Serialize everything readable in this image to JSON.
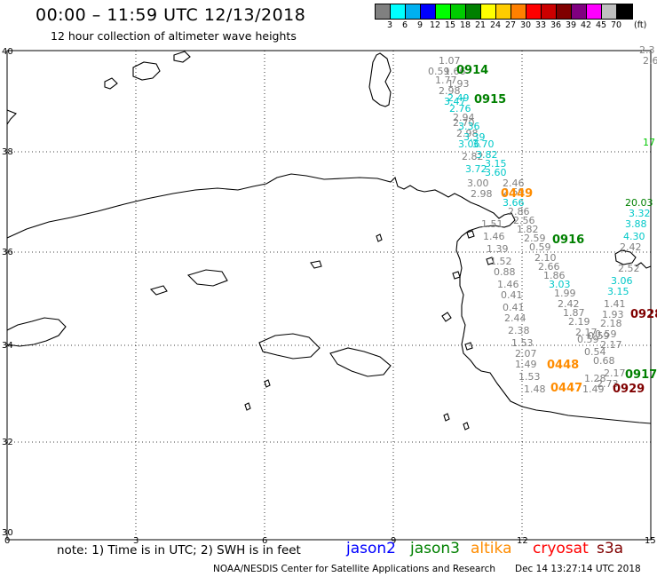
{
  "header": {
    "title": "00:00 – 11:59 UTC 12/13/2018",
    "subtitle": "12 hour collection of altimeter wave heights"
  },
  "scale": {
    "colors": [
      "#808080",
      "#00ffff",
      "#00b0f0",
      "#0000ff",
      "#00ff00",
      "#00cc00",
      "#008000",
      "#ffff00",
      "#ffcc00",
      "#ff8000",
      "#ff0000",
      "#cc0000",
      "#800000",
      "#800080",
      "#ff00ff",
      "#c0c0c0",
      "#000000"
    ],
    "labels": [
      "3",
      "6",
      "9",
      "12",
      "15",
      "18",
      "21",
      "24",
      "27",
      "30",
      "33",
      "36",
      "39",
      "42",
      "45",
      "70"
    ],
    "unit": "(ft)"
  },
  "axes": {
    "lat_labels": [
      "40",
      "38",
      "36",
      "34",
      "32",
      "30"
    ],
    "lon_labels": [
      "0",
      "3",
      "6",
      "9",
      "12",
      "15"
    ]
  },
  "passes": [
    {
      "label": "0914",
      "color": "#008000"
    },
    {
      "label": "0915",
      "color": "#008000"
    },
    {
      "label": "0449",
      "color": "#ff8c00"
    },
    {
      "label": "0916",
      "color": "#008000"
    },
    {
      "label": "0928",
      "color": "#800000"
    },
    {
      "label": "0448",
      "color": "#ff8c00"
    },
    {
      "label": "0917",
      "color": "#008000"
    },
    {
      "label": "0447",
      "color": "#ff8c00"
    },
    {
      "label": "0929",
      "color": "#800000"
    }
  ],
  "wave_values": [
    {
      "v": "1.07",
      "c": "#808080"
    },
    {
      "v": "0.59",
      "c": "#808080"
    },
    {
      "v": "1.66",
      "c": "#808080"
    },
    {
      "v": "1.77",
      "c": "#808080"
    },
    {
      "v": "1.93",
      "c": "#808080"
    },
    {
      "v": "2.98",
      "c": "#808080"
    },
    {
      "v": "2.49",
      "c": "#00c8c8"
    },
    {
      "v": "3.47",
      "c": "#00c8c8"
    },
    {
      "v": "2.76",
      "c": "#00c8c8"
    },
    {
      "v": "2.94",
      "c": "#808080"
    },
    {
      "v": "2.70",
      "c": "#808080"
    },
    {
      "v": "3.36",
      "c": "#00c8c8"
    },
    {
      "v": "2.98",
      "c": "#808080"
    },
    {
      "v": "3.39",
      "c": "#00c8c8"
    },
    {
      "v": "3.06",
      "c": "#00c8c8"
    },
    {
      "v": "3.70",
      "c": "#00c8c8"
    },
    {
      "v": "2.82",
      "c": "#808080"
    },
    {
      "v": "3.82",
      "c": "#00c8c8"
    },
    {
      "v": "3.15",
      "c": "#00c8c8"
    },
    {
      "v": "3.72",
      "c": "#00c8c8"
    },
    {
      "v": "3.60",
      "c": "#00c8c8"
    },
    {
      "v": "3.00",
      "c": "#808080"
    },
    {
      "v": "2.46",
      "c": "#808080"
    },
    {
      "v": "2.98",
      "c": "#808080"
    },
    {
      "v": "2.59",
      "c": "#808080"
    },
    {
      "v": "3.66",
      "c": "#00c8c8"
    },
    {
      "v": "2.86",
      "c": "#808080"
    },
    {
      "v": "2.56",
      "c": "#808080"
    },
    {
      "v": "1.51",
      "c": "#808080"
    },
    {
      "v": "1.82",
      "c": "#808080"
    },
    {
      "v": "1.46",
      "c": "#808080"
    },
    {
      "v": "2.59",
      "c": "#808080"
    },
    {
      "v": "1.39",
      "c": "#808080"
    },
    {
      "v": "0.59",
      "c": "#808080"
    },
    {
      "v": "1.52",
      "c": "#808080"
    },
    {
      "v": "2.10",
      "c": "#808080"
    },
    {
      "v": "0.88",
      "c": "#808080"
    },
    {
      "v": "2.66",
      "c": "#808080"
    },
    {
      "v": "1.46",
      "c": "#808080"
    },
    {
      "v": "1.86",
      "c": "#808080"
    },
    {
      "v": "3.03",
      "c": "#00c8c8"
    },
    {
      "v": "0.41",
      "c": "#808080"
    },
    {
      "v": "1.99",
      "c": "#808080"
    },
    {
      "v": "0.41",
      "c": "#808080"
    },
    {
      "v": "2.42",
      "c": "#808080"
    },
    {
      "v": "2.44",
      "c": "#808080"
    },
    {
      "v": "1.87",
      "c": "#808080"
    },
    {
      "v": "2.38",
      "c": "#808080"
    },
    {
      "v": "2.19",
      "c": "#808080"
    },
    {
      "v": "1.53",
      "c": "#808080"
    },
    {
      "v": "2.17",
      "c": "#808080"
    },
    {
      "v": "0.59",
      "c": "#808080"
    },
    {
      "v": "2.07",
      "c": "#808080"
    },
    {
      "v": "0.59",
      "c": "#808080"
    },
    {
      "v": "1.49",
      "c": "#808080"
    },
    {
      "v": "0.54",
      "c": "#808080"
    },
    {
      "v": "0.68",
      "c": "#808080"
    },
    {
      "v": "1.53",
      "c": "#808080"
    },
    {
      "v": "1.28",
      "c": "#808080"
    },
    {
      "v": "1.48",
      "c": "#808080"
    },
    {
      "v": "1.49",
      "c": "#808080"
    },
    {
      "v": "20.03",
      "c": "#008000"
    },
    {
      "v": "3.32",
      "c": "#00c8c8"
    },
    {
      "v": "3.88",
      "c": "#00c8c8"
    },
    {
      "v": "4.30",
      "c": "#00c8c8"
    },
    {
      "v": "2.42",
      "c": "#808080"
    },
    {
      "v": "2.52",
      "c": "#808080"
    },
    {
      "v": "3.06",
      "c": "#00c8c8"
    },
    {
      "v": "3.15",
      "c": "#00c8c8"
    },
    {
      "v": "1.41",
      "c": "#808080"
    },
    {
      "v": "1.93",
      "c": "#808080"
    },
    {
      "v": "2.18",
      "c": "#808080"
    },
    {
      "v": "0.59",
      "c": "#808080"
    },
    {
      "v": "2.17",
      "c": "#808080"
    },
    {
      "v": "2.17",
      "c": "#808080"
    },
    {
      "v": "2.73",
      "c": "#808080"
    },
    {
      "v": "17",
      "c": "#00c800"
    },
    {
      "v": "2.3",
      "c": "#808080"
    },
    {
      "v": "2.6",
      "c": "#808080"
    }
  ],
  "footer": {
    "note": "note:  1) Time is in UTC;  2) SWH is in feet",
    "legend": [
      {
        "label": "jason2",
        "color": "#0000ff"
      },
      {
        "label": "jason3",
        "color": "#008000"
      },
      {
        "label": "altika",
        "color": "#ff8c00"
      },
      {
        "label": "cryosat",
        "color": "#ff0000"
      },
      {
        "label": "s3a",
        "color": "#800000"
      }
    ],
    "credit": "NOAA/NESDIS Center for Satellite Applications and Research",
    "timestamp": "Dec 14 13:27:14 UTC 2018"
  }
}
